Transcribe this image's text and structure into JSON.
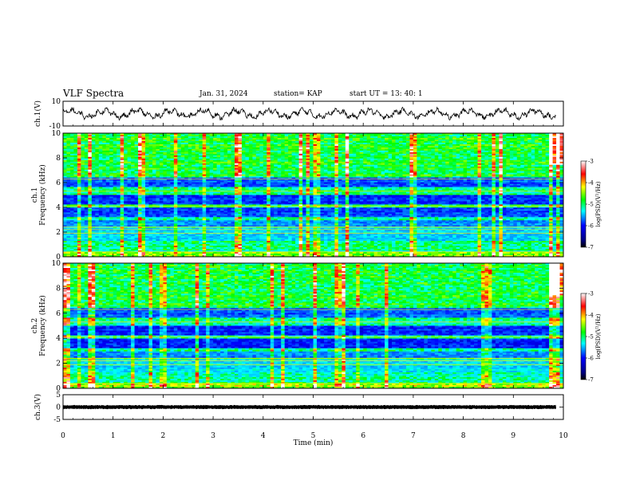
{
  "header": {
    "title": "VLF Spectra",
    "date": "Jan. 31, 2024",
    "station": "station= KAP",
    "start": "start  UT =   13: 40: 1"
  },
  "chart_data": [
    {
      "type": "line",
      "title": "",
      "ylabel": "ch.1(V)",
      "ylim": [
        -10,
        10
      ],
      "yticks": [
        "10",
        "-10"
      ],
      "xlim": [
        0,
        10
      ],
      "series": [
        {
          "values_description_note": "",
          "values": []
        }
      ]
    },
    {
      "type": "heatmap",
      "ylabel": "Frequency (kHz)",
      "channel": "ch.1",
      "ylim": [
        0,
        10
      ],
      "yticks": [
        "0",
        "2",
        "4",
        "6",
        "8",
        "10"
      ],
      "xlim": [
        0,
        10
      ],
      "colorbar": {
        "label": "log(PSD)(V²/Hz)",
        "ticks": [
          "-3",
          "-4",
          "-5",
          "-6",
          "-7"
        ],
        "range": [
          -7,
          -3
        ]
      }
    },
    {
      "type": "heatmap",
      "ylabel": "Frequency (kHz)",
      "channel": "ch.2",
      "ylim": [
        0,
        10
      ],
      "yticks": [
        "0",
        "2",
        "4",
        "6",
        "8",
        "10"
      ],
      "xlim": [
        0,
        10
      ],
      "colorbar": {
        "label": "log(PSD)(V²/Hz)",
        "ticks": [
          "-3",
          "-4",
          "-5",
          "-6",
          "-7"
        ],
        "range": [
          -7,
          -3
        ]
      }
    },
    {
      "type": "line",
      "ylabel": "ch.3(V)",
      "ylim": [
        -5,
        5
      ],
      "yticks": [
        "5",
        "0",
        "-5"
      ],
      "xlim": [
        0,
        10
      ],
      "xlabel": "Time (min)",
      "xticks": [
        "0",
        "1",
        "2",
        "3",
        "4",
        "5",
        "6",
        "7",
        "8",
        "9",
        "10"
      ]
    }
  ],
  "colors": {
    "line": "#000000",
    "background": "#ffffff"
  }
}
